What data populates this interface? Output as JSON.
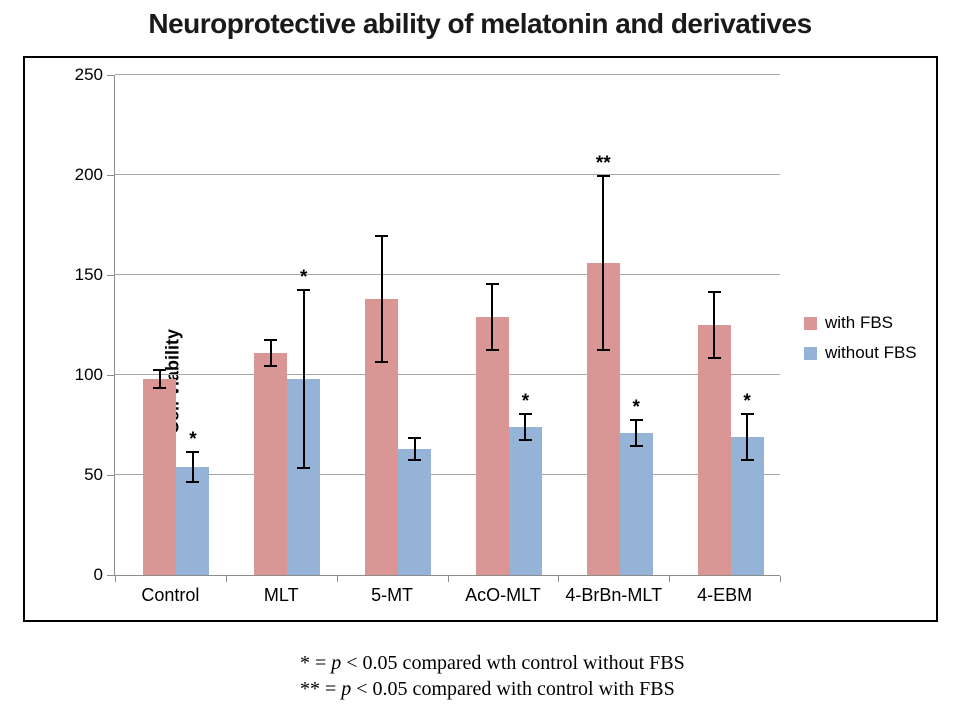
{
  "chart_data": {
    "type": "bar",
    "title": "Neuroprotective ability of melatonin and derivatives",
    "xlabel": "",
    "ylabel": "Cell viability",
    "ylim": [
      0,
      250
    ],
    "yticks": [
      0,
      50,
      100,
      150,
      200,
      250
    ],
    "grid": true,
    "legend_position": "right",
    "categories": [
      "Control",
      "MLT",
      "5-MT",
      "AcO-MLT",
      "4-BrBn-MLT",
      "4-EBM"
    ],
    "series": [
      {
        "name": "with FBS",
        "color": "#D99694",
        "values": [
          98,
          111,
          138,
          129,
          156,
          125
        ],
        "errors": [
          5,
          7,
          32,
          17,
          44,
          17
        ],
        "sig": [
          "",
          "",
          "",
          "",
          "**",
          ""
        ]
      },
      {
        "name": "without FBS",
        "color": "#95B3D7",
        "values": [
          54,
          98,
          63,
          74,
          71,
          69
        ],
        "errors": [
          8,
          45,
          6,
          7,
          7,
          12
        ],
        "sig": [
          "*",
          "*",
          "",
          "*",
          "*",
          "*"
        ]
      }
    ]
  },
  "footnotes": [
    {
      "marker": "* = ",
      "p": "p",
      "rest": " < 0.05 compared wth control without FBS"
    },
    {
      "marker": "** = ",
      "p": "p",
      "rest": " < 0.05 compared with control with FBS"
    }
  ]
}
